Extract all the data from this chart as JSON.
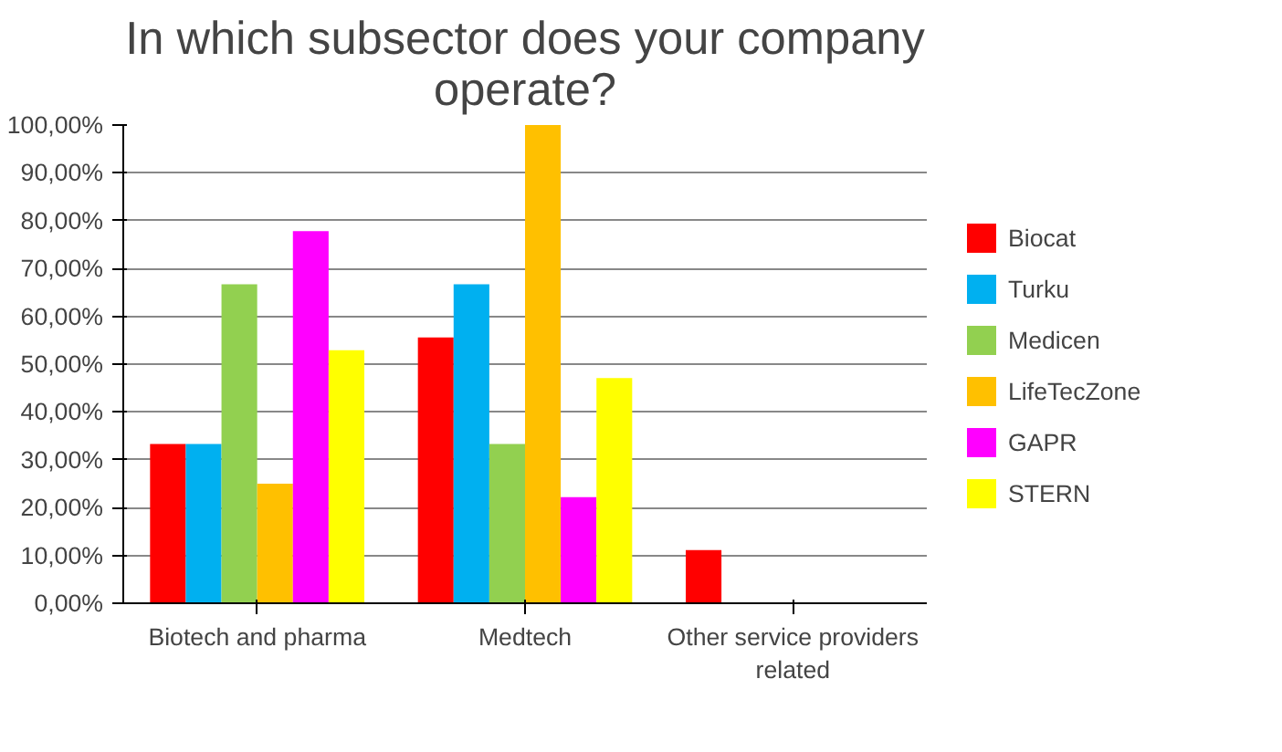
{
  "chart_data": {
    "type": "bar",
    "title": "In which subsector does your company operate?",
    "categories": [
      "Biotech and pharma",
      "Medtech",
      "Other service providers related"
    ],
    "series": [
      {
        "name": "Biocat",
        "color": "#ff0000",
        "values": [
          33.3,
          55.6,
          11.1
        ]
      },
      {
        "name": "Turku",
        "color": "#00b0f0",
        "values": [
          33.3,
          66.7,
          0
        ]
      },
      {
        "name": "Medicen",
        "color": "#92d050",
        "values": [
          66.7,
          33.3,
          0
        ]
      },
      {
        "name": "LifeTecZone",
        "color": "#ffc000",
        "values": [
          25,
          100,
          0
        ]
      },
      {
        "name": "GAPR",
        "color": "#ff00ff",
        "values": [
          77.8,
          22.2,
          0
        ]
      },
      {
        "name": "STERN",
        "color": "#ffff00",
        "values": [
          52.9,
          47.1,
          0
        ]
      }
    ],
    "ylim": [
      0,
      100
    ],
    "yticks": [
      {
        "value": 0,
        "label": "0,00%"
      },
      {
        "value": 10,
        "label": "10,00%"
      },
      {
        "value": 20,
        "label": "20,00%"
      },
      {
        "value": 30,
        "label": "30,00%"
      },
      {
        "value": 40,
        "label": "40,00%"
      },
      {
        "value": 50,
        "label": "50,00%"
      },
      {
        "value": 60,
        "label": "60,00%"
      },
      {
        "value": 70,
        "label": "70,00%"
      },
      {
        "value": 80,
        "label": "80,00%"
      },
      {
        "value": 90,
        "label": "90,00%"
      },
      {
        "value": 100,
        "label": "100,00%"
      }
    ],
    "grid": "y",
    "legend": "right"
  }
}
